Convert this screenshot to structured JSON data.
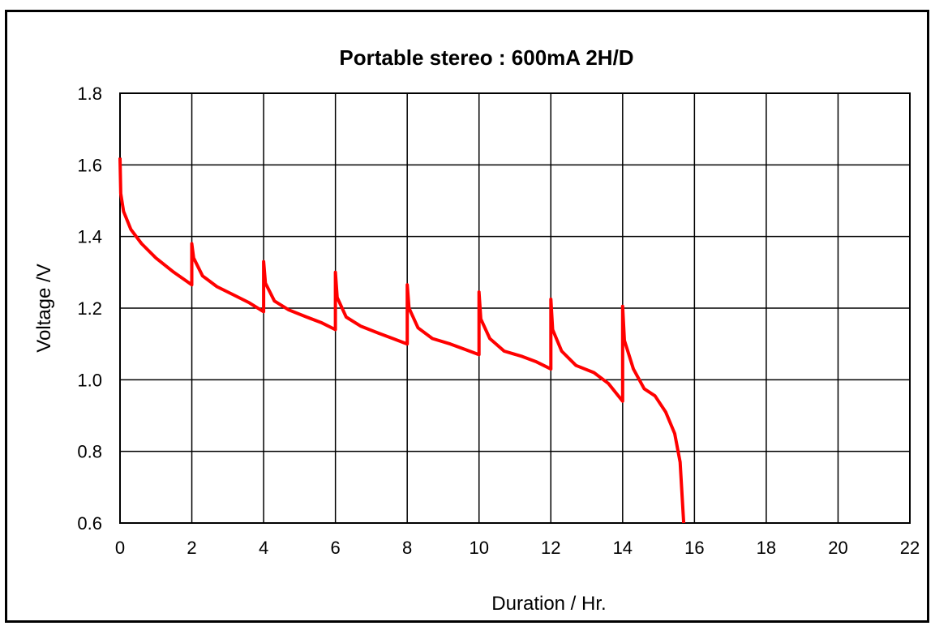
{
  "chart_data": {
    "type": "line",
    "title": "Portable stereo : 600mA 2H/D",
    "xlabel": "Duration  / Hr.",
    "ylabel": "Voltage  /V",
    "xlim": [
      0,
      22
    ],
    "ylim": [
      0.6,
      1.8
    ],
    "xticks": [
      "0",
      "2",
      "4",
      "6",
      "8",
      "10",
      "12",
      "14",
      "16",
      "18",
      "20",
      "22"
    ],
    "yticks": [
      "0.6",
      "0.8",
      "1.0",
      "1.2",
      "1.4",
      "1.6",
      "1.8"
    ],
    "grid": true,
    "line_color": "#ff0000",
    "series": [
      {
        "points": [
          [
            0,
            1.62
          ],
          [
            0.02,
            1.52
          ],
          [
            0.1,
            1.47
          ],
          [
            0.3,
            1.42
          ],
          [
            0.6,
            1.38
          ],
          [
            1.0,
            1.34
          ],
          [
            1.5,
            1.3
          ],
          [
            2.0,
            1.265
          ],
          [
            2.0,
            1.38
          ],
          [
            2.05,
            1.34
          ],
          [
            2.3,
            1.29
          ],
          [
            2.7,
            1.26
          ],
          [
            3.2,
            1.235
          ],
          [
            3.6,
            1.215
          ],
          [
            4.0,
            1.19
          ],
          [
            4.0,
            1.33
          ],
          [
            4.05,
            1.27
          ],
          [
            4.3,
            1.22
          ],
          [
            4.7,
            1.195
          ],
          [
            5.2,
            1.175
          ],
          [
            5.6,
            1.16
          ],
          [
            6.0,
            1.14
          ],
          [
            6.0,
            1.3
          ],
          [
            6.05,
            1.23
          ],
          [
            6.3,
            1.175
          ],
          [
            6.7,
            1.15
          ],
          [
            7.2,
            1.13
          ],
          [
            7.6,
            1.115
          ],
          [
            8.0,
            1.1
          ],
          [
            8.0,
            1.265
          ],
          [
            8.05,
            1.2
          ],
          [
            8.3,
            1.145
          ],
          [
            8.7,
            1.115
          ],
          [
            9.2,
            1.1
          ],
          [
            9.6,
            1.085
          ],
          [
            10.0,
            1.07
          ],
          [
            10.0,
            1.245
          ],
          [
            10.05,
            1.17
          ],
          [
            10.3,
            1.115
          ],
          [
            10.7,
            1.08
          ],
          [
            11.2,
            1.065
          ],
          [
            11.6,
            1.05
          ],
          [
            12.0,
            1.03
          ],
          [
            12.0,
            1.225
          ],
          [
            12.05,
            1.14
          ],
          [
            12.3,
            1.08
          ],
          [
            12.7,
            1.04
          ],
          [
            13.2,
            1.02
          ],
          [
            13.6,
            0.99
          ],
          [
            14.0,
            0.94
          ],
          [
            14.0,
            1.205
          ],
          [
            14.05,
            1.11
          ],
          [
            14.3,
            1.03
          ],
          [
            14.6,
            0.975
          ],
          [
            14.9,
            0.955
          ],
          [
            15.2,
            0.91
          ],
          [
            15.45,
            0.85
          ],
          [
            15.6,
            0.77
          ],
          [
            15.7,
            0.6
          ]
        ]
      }
    ]
  }
}
